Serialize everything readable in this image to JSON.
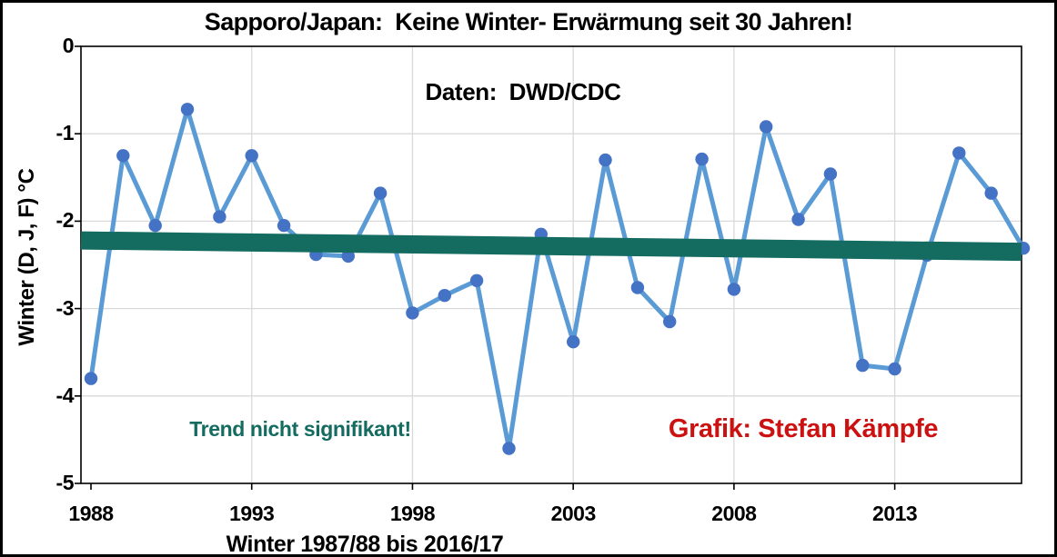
{
  "title": "Sapporo/Japan:  Keine Winter- Erwärmung seit 30 Jahren!",
  "annotations": {
    "data_source": "Daten:  DWD/CDC",
    "trend_note": "Trend nicht signifikant!",
    "credit": "Grafik: Stefan Kämpfe"
  },
  "colors": {
    "line": "#5B9BD5",
    "marker": "#4472C4",
    "trend": "#146B60",
    "trend_text": "#146B60",
    "credit_text": "#CC1111",
    "grid": "#D9D9D9",
    "axis": "#000000",
    "background": "#FFFFFF"
  },
  "chart_data": {
    "type": "line",
    "title": "Sapporo/Japan:  Keine Winter- Erwärmung seit 30 Jahren!",
    "xlabel": "Winter 1987/88 bis 2016/17",
    "ylabel": "Winter (D, J, F) °C",
    "x": [
      1988,
      1989,
      1990,
      1991,
      1992,
      1993,
      1994,
      1995,
      1996,
      1997,
      1998,
      1999,
      2000,
      2001,
      2002,
      2003,
      2004,
      2005,
      2006,
      2007,
      2008,
      2009,
      2010,
      2011,
      2012,
      2013,
      2014,
      2015,
      2016,
      2017
    ],
    "series": [
      {
        "name": "Winter (D, J, F) °C",
        "values": [
          -3.8,
          -1.25,
          -2.05,
          -0.72,
          -1.95,
          -1.25,
          -2.05,
          -2.38,
          -2.4,
          -1.68,
          -3.05,
          -2.85,
          -2.68,
          -4.6,
          -2.15,
          -3.38,
          -1.3,
          -2.76,
          -3.15,
          -1.29,
          -2.78,
          -0.92,
          -1.98,
          -1.46,
          -3.65,
          -3.69,
          -2.39,
          -1.22,
          -1.68,
          -2.31
        ]
      }
    ],
    "trend_line": {
      "label": "Trend nicht signifikant!",
      "start_value": -2.22,
      "end_value": -2.35
    },
    "ylim": [
      -5,
      0
    ],
    "yticks": [
      0,
      -1,
      -2,
      -3,
      -4,
      -5
    ],
    "xticks": [
      1988,
      1993,
      1998,
      2003,
      2008,
      2013
    ],
    "grid": true,
    "legend_position": "none"
  }
}
